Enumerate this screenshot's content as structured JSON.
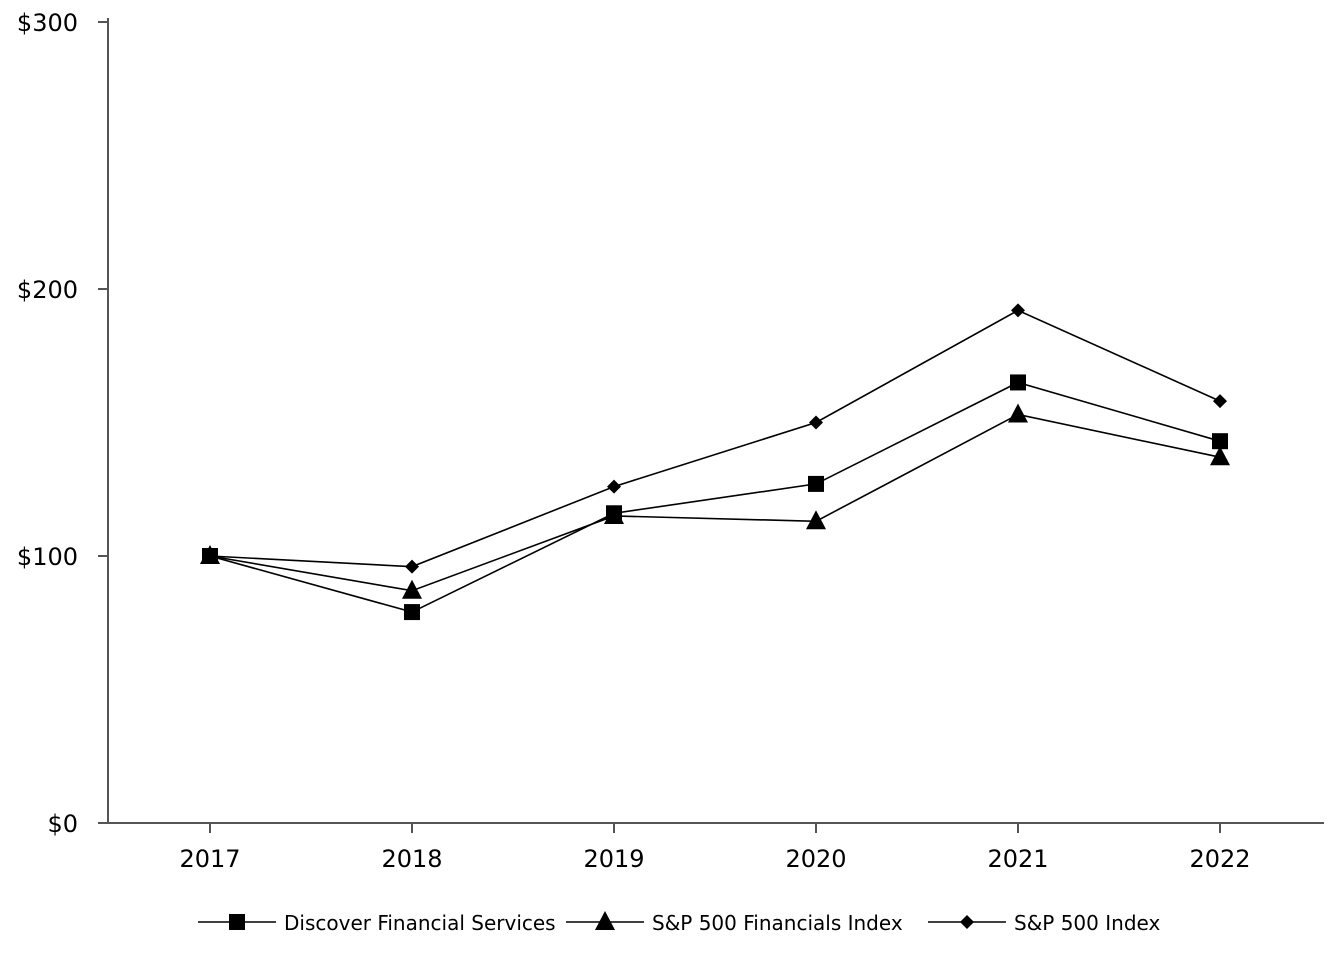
{
  "chart_data": {
    "type": "line",
    "title": "",
    "xlabel": "",
    "ylabel": "",
    "categories": [
      "2017",
      "2018",
      "2019",
      "2020",
      "2021",
      "2022"
    ],
    "ylim": [
      0,
      300
    ],
    "yticks": [
      0,
      100,
      200,
      300
    ],
    "ytick_labels": [
      "$0",
      "$100",
      "$200",
      "$300"
    ],
    "grid": false,
    "legend_position": "bottom",
    "series": [
      {
        "name": "Discover Financial Services",
        "marker": "square",
        "color": "#000000",
        "values": [
          100,
          79,
          116,
          127,
          165,
          143
        ]
      },
      {
        "name": "S&P 500 Financials Index",
        "marker": "triangle",
        "color": "#000000",
        "values": [
          100,
          87,
          115,
          113,
          153,
          137
        ]
      },
      {
        "name": "S&P 500 Index",
        "marker": "diamond",
        "color": "#000000",
        "values": [
          100,
          96,
          126,
          150,
          192,
          158
        ]
      }
    ]
  }
}
